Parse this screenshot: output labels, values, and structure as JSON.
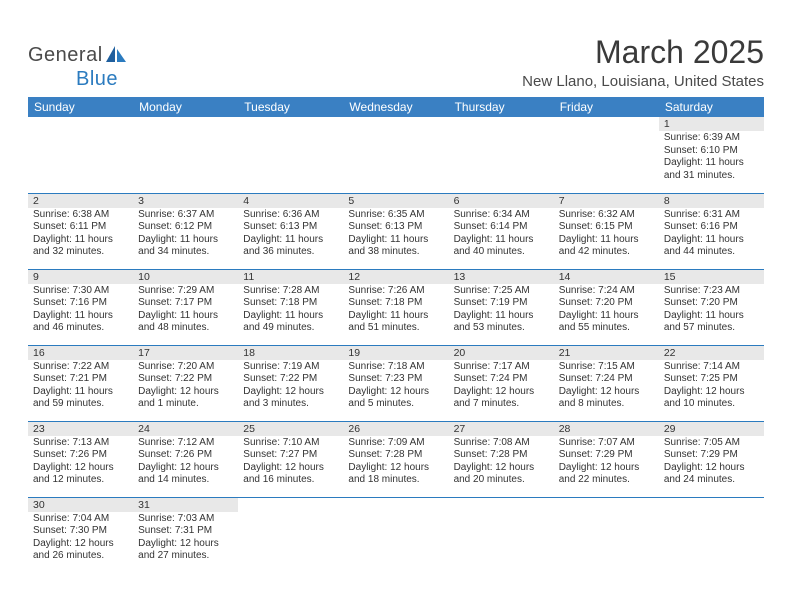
{
  "logo": {
    "text1": "General",
    "text2": "Blue"
  },
  "title": "March 2025",
  "location": "New Llano, Louisiana, United States",
  "colors": {
    "header_bg": "#3a80c3",
    "border": "#2b7bbf",
    "daynum_bg": "#e8e8e8",
    "text": "#333333",
    "title_text": "#3a3a3a"
  },
  "fonts": {
    "title_size": 32,
    "location_size": 15,
    "dayhead_size": 12,
    "cell_size": 10
  },
  "day_headers": [
    "Sunday",
    "Monday",
    "Tuesday",
    "Wednesday",
    "Thursday",
    "Friday",
    "Saturday"
  ],
  "weeks": [
    [
      {
        "empty": true
      },
      {
        "empty": true
      },
      {
        "empty": true
      },
      {
        "empty": true
      },
      {
        "empty": true
      },
      {
        "empty": true
      },
      {
        "n": "1",
        "sunrise": "Sunrise: 6:39 AM",
        "sunset": "Sunset: 6:10 PM",
        "daylight1": "Daylight: 11 hours",
        "daylight2": "and 31 minutes."
      }
    ],
    [
      {
        "n": "2",
        "sunrise": "Sunrise: 6:38 AM",
        "sunset": "Sunset: 6:11 PM",
        "daylight1": "Daylight: 11 hours",
        "daylight2": "and 32 minutes."
      },
      {
        "n": "3",
        "sunrise": "Sunrise: 6:37 AM",
        "sunset": "Sunset: 6:12 PM",
        "daylight1": "Daylight: 11 hours",
        "daylight2": "and 34 minutes."
      },
      {
        "n": "4",
        "sunrise": "Sunrise: 6:36 AM",
        "sunset": "Sunset: 6:13 PM",
        "daylight1": "Daylight: 11 hours",
        "daylight2": "and 36 minutes."
      },
      {
        "n": "5",
        "sunrise": "Sunrise: 6:35 AM",
        "sunset": "Sunset: 6:13 PM",
        "daylight1": "Daylight: 11 hours",
        "daylight2": "and 38 minutes."
      },
      {
        "n": "6",
        "sunrise": "Sunrise: 6:34 AM",
        "sunset": "Sunset: 6:14 PM",
        "daylight1": "Daylight: 11 hours",
        "daylight2": "and 40 minutes."
      },
      {
        "n": "7",
        "sunrise": "Sunrise: 6:32 AM",
        "sunset": "Sunset: 6:15 PM",
        "daylight1": "Daylight: 11 hours",
        "daylight2": "and 42 minutes."
      },
      {
        "n": "8",
        "sunrise": "Sunrise: 6:31 AM",
        "sunset": "Sunset: 6:16 PM",
        "daylight1": "Daylight: 11 hours",
        "daylight2": "and 44 minutes."
      }
    ],
    [
      {
        "n": "9",
        "sunrise": "Sunrise: 7:30 AM",
        "sunset": "Sunset: 7:16 PM",
        "daylight1": "Daylight: 11 hours",
        "daylight2": "and 46 minutes."
      },
      {
        "n": "10",
        "sunrise": "Sunrise: 7:29 AM",
        "sunset": "Sunset: 7:17 PM",
        "daylight1": "Daylight: 11 hours",
        "daylight2": "and 48 minutes."
      },
      {
        "n": "11",
        "sunrise": "Sunrise: 7:28 AM",
        "sunset": "Sunset: 7:18 PM",
        "daylight1": "Daylight: 11 hours",
        "daylight2": "and 49 minutes."
      },
      {
        "n": "12",
        "sunrise": "Sunrise: 7:26 AM",
        "sunset": "Sunset: 7:18 PM",
        "daylight1": "Daylight: 11 hours",
        "daylight2": "and 51 minutes."
      },
      {
        "n": "13",
        "sunrise": "Sunrise: 7:25 AM",
        "sunset": "Sunset: 7:19 PM",
        "daylight1": "Daylight: 11 hours",
        "daylight2": "and 53 minutes."
      },
      {
        "n": "14",
        "sunrise": "Sunrise: 7:24 AM",
        "sunset": "Sunset: 7:20 PM",
        "daylight1": "Daylight: 11 hours",
        "daylight2": "and 55 minutes."
      },
      {
        "n": "15",
        "sunrise": "Sunrise: 7:23 AM",
        "sunset": "Sunset: 7:20 PM",
        "daylight1": "Daylight: 11 hours",
        "daylight2": "and 57 minutes."
      }
    ],
    [
      {
        "n": "16",
        "sunrise": "Sunrise: 7:22 AM",
        "sunset": "Sunset: 7:21 PM",
        "daylight1": "Daylight: 11 hours",
        "daylight2": "and 59 minutes."
      },
      {
        "n": "17",
        "sunrise": "Sunrise: 7:20 AM",
        "sunset": "Sunset: 7:22 PM",
        "daylight1": "Daylight: 12 hours",
        "daylight2": "and 1 minute."
      },
      {
        "n": "18",
        "sunrise": "Sunrise: 7:19 AM",
        "sunset": "Sunset: 7:22 PM",
        "daylight1": "Daylight: 12 hours",
        "daylight2": "and 3 minutes."
      },
      {
        "n": "19",
        "sunrise": "Sunrise: 7:18 AM",
        "sunset": "Sunset: 7:23 PM",
        "daylight1": "Daylight: 12 hours",
        "daylight2": "and 5 minutes."
      },
      {
        "n": "20",
        "sunrise": "Sunrise: 7:17 AM",
        "sunset": "Sunset: 7:24 PM",
        "daylight1": "Daylight: 12 hours",
        "daylight2": "and 7 minutes."
      },
      {
        "n": "21",
        "sunrise": "Sunrise: 7:15 AM",
        "sunset": "Sunset: 7:24 PM",
        "daylight1": "Daylight: 12 hours",
        "daylight2": "and 8 minutes."
      },
      {
        "n": "22",
        "sunrise": "Sunrise: 7:14 AM",
        "sunset": "Sunset: 7:25 PM",
        "daylight1": "Daylight: 12 hours",
        "daylight2": "and 10 minutes."
      }
    ],
    [
      {
        "n": "23",
        "sunrise": "Sunrise: 7:13 AM",
        "sunset": "Sunset: 7:26 PM",
        "daylight1": "Daylight: 12 hours",
        "daylight2": "and 12 minutes."
      },
      {
        "n": "24",
        "sunrise": "Sunrise: 7:12 AM",
        "sunset": "Sunset: 7:26 PM",
        "daylight1": "Daylight: 12 hours",
        "daylight2": "and 14 minutes."
      },
      {
        "n": "25",
        "sunrise": "Sunrise: 7:10 AM",
        "sunset": "Sunset: 7:27 PM",
        "daylight1": "Daylight: 12 hours",
        "daylight2": "and 16 minutes."
      },
      {
        "n": "26",
        "sunrise": "Sunrise: 7:09 AM",
        "sunset": "Sunset: 7:28 PM",
        "daylight1": "Daylight: 12 hours",
        "daylight2": "and 18 minutes."
      },
      {
        "n": "27",
        "sunrise": "Sunrise: 7:08 AM",
        "sunset": "Sunset: 7:28 PM",
        "daylight1": "Daylight: 12 hours",
        "daylight2": "and 20 minutes."
      },
      {
        "n": "28",
        "sunrise": "Sunrise: 7:07 AM",
        "sunset": "Sunset: 7:29 PM",
        "daylight1": "Daylight: 12 hours",
        "daylight2": "and 22 minutes."
      },
      {
        "n": "29",
        "sunrise": "Sunrise: 7:05 AM",
        "sunset": "Sunset: 7:29 PM",
        "daylight1": "Daylight: 12 hours",
        "daylight2": "and 24 minutes."
      }
    ],
    [
      {
        "n": "30",
        "sunrise": "Sunrise: 7:04 AM",
        "sunset": "Sunset: 7:30 PM",
        "daylight1": "Daylight: 12 hours",
        "daylight2": "and 26 minutes."
      },
      {
        "n": "31",
        "sunrise": "Sunrise: 7:03 AM",
        "sunset": "Sunset: 7:31 PM",
        "daylight1": "Daylight: 12 hours",
        "daylight2": "and 27 minutes."
      },
      {
        "empty": true
      },
      {
        "empty": true
      },
      {
        "empty": true
      },
      {
        "empty": true
      },
      {
        "empty": true
      }
    ]
  ]
}
